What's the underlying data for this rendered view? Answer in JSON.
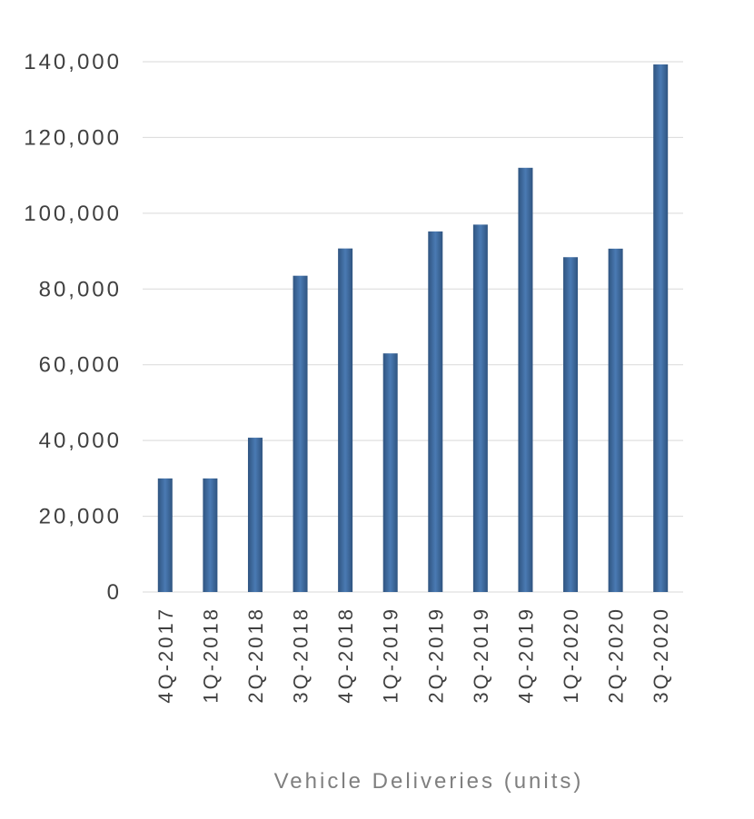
{
  "chart_data": {
    "type": "bar",
    "xlabel": "Vehicle Deliveries (units)",
    "ylabel": "",
    "ylim": [
      0,
      140000
    ],
    "yticks": [
      0,
      20000,
      40000,
      60000,
      80000,
      100000,
      120000,
      140000
    ],
    "ytick_labels": [
      "0",
      "20,000",
      "40,000",
      "60,000",
      "80,000",
      "100,000",
      "120,000",
      "140,000"
    ],
    "grid": true,
    "legend": "none",
    "categories": [
      "4Q-2017",
      "1Q-2018",
      "2Q-2018",
      "3Q-2018",
      "4Q-2018",
      "1Q-2019",
      "2Q-2019",
      "3Q-2019",
      "4Q-2019",
      "1Q-2020",
      "2Q-2020",
      "3Q-2020"
    ],
    "values": [
      29980,
      29980,
      40740,
      83500,
      90700,
      63000,
      95200,
      97000,
      112000,
      88400,
      90650,
      139300
    ],
    "colors": {
      "bar_edge": "#2f5480",
      "bar_center": "#4a7ab3",
      "grid": "#d9d9d9"
    }
  }
}
